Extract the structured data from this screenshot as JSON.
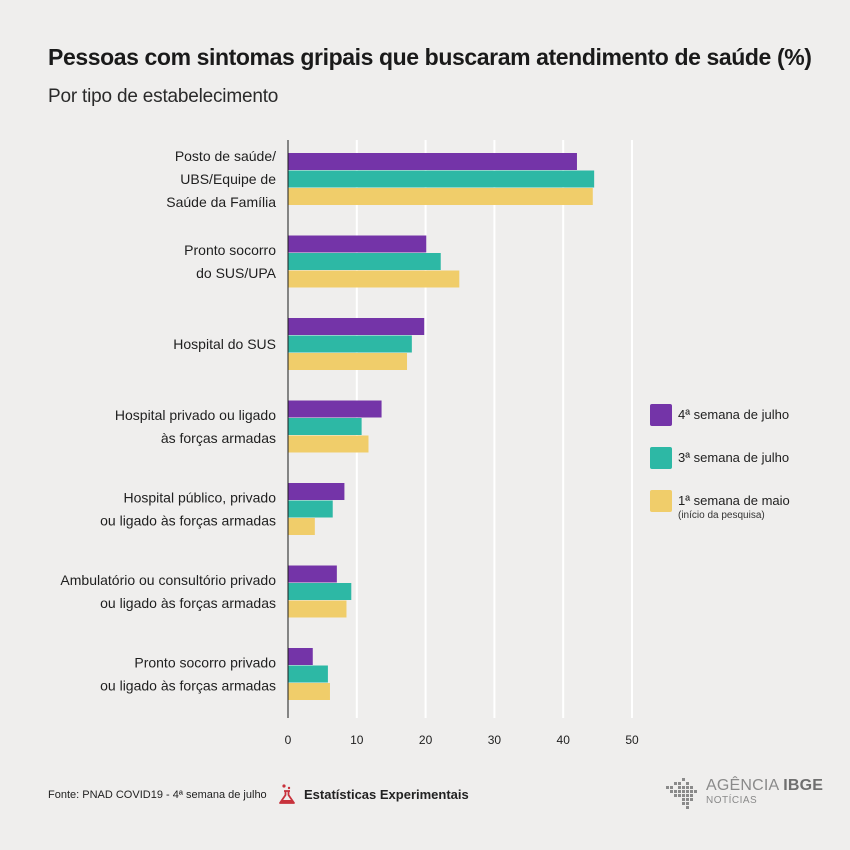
{
  "header": {
    "title": "Pessoas com sintomas gripais que buscaram atendimento de saúde (%)",
    "subtitle": "Por tipo de estabelecimento"
  },
  "chart_data": {
    "type": "bar",
    "orientation": "horizontal",
    "title": "Pessoas com sintomas gripais que buscaram atendimento de saúde (%)",
    "subtitle": "Por tipo de estabelecimento",
    "categories": [
      [
        "Posto de saúde/",
        "UBS/Equipe de",
        "Saúde da Família"
      ],
      [
        "Pronto socorro",
        "do SUS/UPA"
      ],
      [
        "Hospital do SUS"
      ],
      [
        "Hospital privado ou ligado",
        "às forças armadas"
      ],
      [
        "Hospital público, privado",
        "ou ligado às forças armadas"
      ],
      [
        "Ambulatório ou consultório privado",
        "ou ligado às forças armadas"
      ],
      [
        "Pronto socorro privado",
        "ou ligado às forças armadas"
      ]
    ],
    "series": [
      {
        "name": "4ª semana de julho",
        "color": "#7434a8",
        "values": [
          42.0,
          20.1,
          19.8,
          13.6,
          8.2,
          7.1,
          3.6
        ]
      },
      {
        "name": "3ª semana de julho",
        "color": "#2db8a5",
        "values": [
          44.5,
          22.2,
          18.0,
          10.7,
          6.5,
          9.2,
          5.8
        ]
      },
      {
        "name": "1ª semana de maio",
        "color": "#f0cd6a",
        "values": [
          44.3,
          24.9,
          17.3,
          11.7,
          3.9,
          8.5,
          6.1
        ]
      }
    ],
    "xlim": [
      0,
      50
    ],
    "xticks": [
      0,
      10,
      20,
      30,
      40,
      50
    ],
    "grid": true,
    "legend_position": "right"
  },
  "legend": {
    "items": [
      {
        "label": "4ª semana de julho",
        "note": "",
        "color": "#7434a8"
      },
      {
        "label": "3ª semana de julho",
        "note": "",
        "color": "#2db8a5"
      },
      {
        "label": "1ª semana de maio",
        "note": "(início da pesquisa)",
        "color": "#f0cd6a"
      }
    ]
  },
  "footer": {
    "source": "Fonte: PNAD COVID19 - 4ª semana de julho",
    "experimental": "Estatísticas Experimentais",
    "experimental_icon": "flask-icon",
    "brand_icon": "ibge-logo-icon",
    "brand_prefix": "AGÊNCIA",
    "brand_name": "IBGE",
    "brand_sub": "NOTÍCIAS"
  },
  "colors": {
    "background": "#efeeed",
    "axis": "#1a1a1a",
    "grid": "#ffffff",
    "experimental_accent": "#c8323c"
  }
}
